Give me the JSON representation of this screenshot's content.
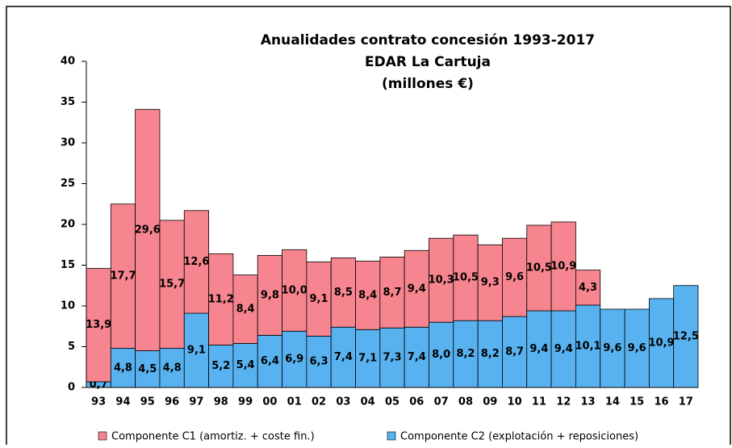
{
  "chart_data": {
    "type": "stacked_bar",
    "title": [
      "Anualidades contrato concesión 1993-2017",
      "EDAR La Cartuja",
      "(millones €)"
    ],
    "categories": [
      "93",
      "94",
      "95",
      "96",
      "97",
      "98",
      "99",
      "00",
      "01",
      "02",
      "03",
      "04",
      "05",
      "06",
      "07",
      "08",
      "09",
      "10",
      "11",
      "12",
      "13",
      "14",
      "15",
      "16",
      "17"
    ],
    "series": [
      {
        "name": "Componente C1 (amortiz. + coste fin.)",
        "color": "#f7858f",
        "values": [
          13.9,
          17.7,
          29.6,
          15.7,
          12.6,
          11.2,
          8.4,
          9.8,
          10.0,
          9.1,
          8.5,
          8.4,
          8.7,
          9.4,
          10.3,
          10.5,
          9.3,
          9.6,
          10.5,
          10.9,
          4.3,
          null,
          null,
          null,
          null
        ],
        "value_labels": [
          "13,9",
          "17,7",
          "29,6",
          "15,7",
          "12,6",
          "11,2",
          "8,4",
          "9,8",
          "10,0",
          "9,1",
          "8,5",
          "8,4",
          "8,7",
          "9,4",
          "10,3",
          "10,5",
          "9,3",
          "9,6",
          "10,5",
          "10,9",
          "4,3",
          null,
          null,
          null,
          null
        ]
      },
      {
        "name": "Componente C2 (explotación + reposiciones)",
        "color": "#58b2f0",
        "values": [
          0.7,
          4.8,
          4.5,
          4.8,
          9.1,
          5.2,
          5.4,
          6.4,
          6.9,
          6.3,
          7.4,
          7.1,
          7.3,
          7.4,
          8.0,
          8.2,
          8.2,
          8.7,
          9.4,
          9.4,
          10.1,
          9.6,
          9.6,
          10.9,
          12.5
        ],
        "value_labels": [
          "0,7",
          "4,8",
          "4,5",
          "4,8",
          "9,1",
          "5,2",
          "5,4",
          "6,4",
          "6,9",
          "6,3",
          "7,4",
          "7,1",
          "7,3",
          "7,4",
          "8,0",
          "8,2",
          "8,2",
          "8,7",
          "9,4",
          "9,4",
          "10,1",
          "9,6",
          "9,6",
          "10,9",
          "12,5"
        ]
      }
    ],
    "ylim": [
      0,
      40
    ],
    "yticks": [
      0,
      5,
      10,
      15,
      20,
      25,
      30,
      35,
      40
    ],
    "grid": false,
    "legend": "bottom"
  }
}
